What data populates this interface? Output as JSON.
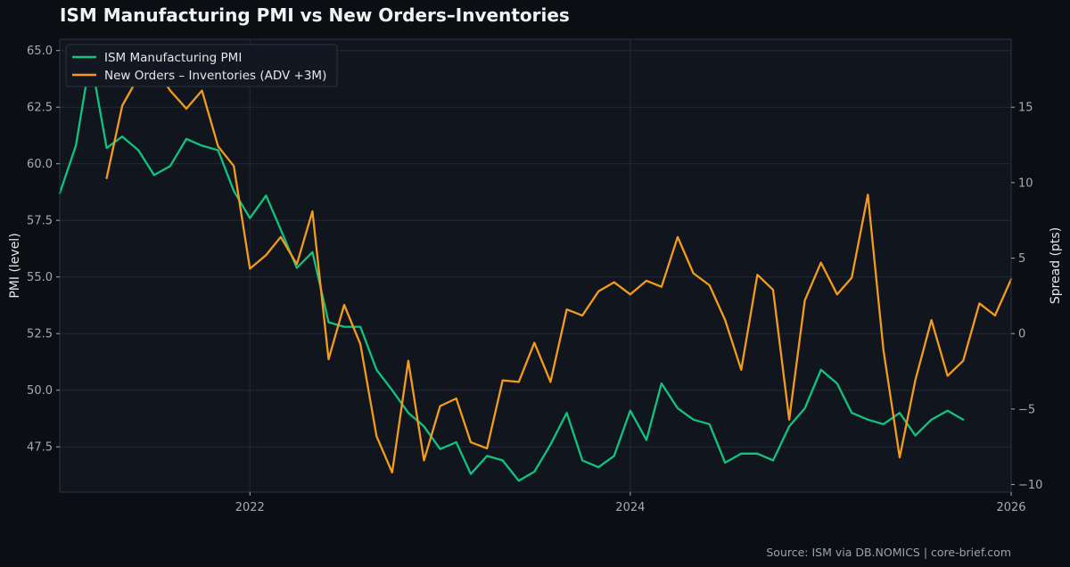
{
  "chart_data": {
    "type": "line",
    "title": "ISM Manufacturing PMI vs New Orders–Inventories",
    "source": "Source: ISM via DB.NOMICS | core-brief.com",
    "ylabel_left": "PMI (level)",
    "ylabel_right": "Spread (pts)",
    "xlim": [
      "2021-01-01",
      "2026-01-01"
    ],
    "ylim_left": [
      45.5,
      65.5
    ],
    "ylim_right": [
      -10.5,
      19.5
    ],
    "x_ticks": [
      {
        "date": "2022-01-01",
        "label": "2022"
      },
      {
        "date": "2024-01-01",
        "label": "2024"
      },
      {
        "date": "2026-01-01",
        "label": "2026"
      }
    ],
    "y_left_ticks": [
      {
        "v": 47.5,
        "label": "47.5"
      },
      {
        "v": 50.0,
        "label": "50.0"
      },
      {
        "v": 52.5,
        "label": "52.5"
      },
      {
        "v": 55.0,
        "label": "55.0"
      },
      {
        "v": 57.5,
        "label": "57.5"
      },
      {
        "v": 60.0,
        "label": "60.0"
      },
      {
        "v": 62.5,
        "label": "62.5"
      },
      {
        "v": 65.0,
        "label": "65.0"
      }
    ],
    "y_right_ticks": [
      {
        "v": -10,
        "label": "−10"
      },
      {
        "v": -5,
        "label": "−5"
      },
      {
        "v": 0,
        "label": "0"
      },
      {
        "v": 5,
        "label": "5"
      },
      {
        "v": 10,
        "label": "10"
      },
      {
        "v": 15,
        "label": "15"
      }
    ],
    "grid": true,
    "legend_position": "top-left",
    "series": [
      {
        "name": "ISM Manufacturing PMI",
        "axis": "left",
        "color": "#10c47e",
        "points": [
          [
            "2021-01-01",
            58.7
          ],
          [
            "2021-02-01",
            60.8
          ],
          [
            "2021-03-01",
            64.7
          ],
          [
            "2021-04-01",
            60.7
          ],
          [
            "2021-05-01",
            61.2
          ],
          [
            "2021-06-01",
            60.6
          ],
          [
            "2021-07-01",
            59.5
          ],
          [
            "2021-08-01",
            59.9
          ],
          [
            "2021-09-01",
            61.1
          ],
          [
            "2021-10-01",
            60.8
          ],
          [
            "2021-11-01",
            60.6
          ],
          [
            "2021-12-01",
            58.8
          ],
          [
            "2022-01-01",
            57.6
          ],
          [
            "2022-02-01",
            58.6
          ],
          [
            "2022-03-01",
            57.1
          ],
          [
            "2022-04-01",
            55.4
          ],
          [
            "2022-05-01",
            56.1
          ],
          [
            "2022-06-01",
            53.0
          ],
          [
            "2022-07-01",
            52.8
          ],
          [
            "2022-08-01",
            52.8
          ],
          [
            "2022-09-01",
            50.9
          ],
          [
            "2022-10-01",
            50.0
          ],
          [
            "2022-11-01",
            49.0
          ],
          [
            "2022-12-01",
            48.4
          ],
          [
            "2023-01-01",
            47.4
          ],
          [
            "2023-02-01",
            47.7
          ],
          [
            "2023-03-01",
            46.3
          ],
          [
            "2023-04-01",
            47.1
          ],
          [
            "2023-05-01",
            46.9
          ],
          [
            "2023-06-01",
            46.0
          ],
          [
            "2023-07-01",
            46.4
          ],
          [
            "2023-08-01",
            47.6
          ],
          [
            "2023-09-01",
            49.0
          ],
          [
            "2023-10-01",
            46.9
          ],
          [
            "2023-11-01",
            46.6
          ],
          [
            "2023-12-01",
            47.1
          ],
          [
            "2024-01-01",
            49.1
          ],
          [
            "2024-02-01",
            47.8
          ],
          [
            "2024-03-01",
            50.3
          ],
          [
            "2024-04-01",
            49.2
          ],
          [
            "2024-05-01",
            48.7
          ],
          [
            "2024-06-01",
            48.5
          ],
          [
            "2024-07-01",
            46.8
          ],
          [
            "2024-08-01",
            47.2
          ],
          [
            "2024-09-01",
            47.2
          ],
          [
            "2024-10-01",
            46.9
          ],
          [
            "2024-11-01",
            48.4
          ],
          [
            "2024-12-01",
            49.2
          ],
          [
            "2025-01-01",
            50.9
          ],
          [
            "2025-02-01",
            50.3
          ],
          [
            "2025-03-01",
            49.0
          ],
          [
            "2025-04-01",
            48.7
          ],
          [
            "2025-05-01",
            48.5
          ],
          [
            "2025-06-01",
            49.0
          ],
          [
            "2025-07-01",
            48.0
          ],
          [
            "2025-08-01",
            48.7
          ],
          [
            "2025-09-01",
            49.1
          ],
          [
            "2025-10-01",
            48.7
          ]
        ]
      },
      {
        "name": "New Orders – Inventories (ADV +3M)",
        "axis": "right",
        "color": "#f39c1b",
        "points": [
          [
            "2021-04-01",
            10.3
          ],
          [
            "2021-05-01",
            15.1
          ],
          [
            "2021-06-01",
            17.0
          ],
          [
            "2021-07-01",
            17.7
          ],
          [
            "2021-08-01",
            16.1
          ],
          [
            "2021-09-01",
            14.9
          ],
          [
            "2021-10-01",
            16.1
          ],
          [
            "2021-11-01",
            12.4
          ],
          [
            "2021-12-01",
            11.1
          ],
          [
            "2022-01-01",
            4.3
          ],
          [
            "2022-02-01",
            5.2
          ],
          [
            "2022-03-01",
            6.4
          ],
          [
            "2022-04-01",
            4.6
          ],
          [
            "2022-05-01",
            8.1
          ],
          [
            "2022-06-01",
            -1.7
          ],
          [
            "2022-07-01",
            1.9
          ],
          [
            "2022-08-01",
            -0.7
          ],
          [
            "2022-09-01",
            -6.8
          ],
          [
            "2022-10-01",
            -9.2
          ],
          [
            "2022-11-01",
            -1.8
          ],
          [
            "2022-12-01",
            -8.4
          ],
          [
            "2023-01-01",
            -4.8
          ],
          [
            "2023-02-01",
            -4.3
          ],
          [
            "2023-03-01",
            -7.2
          ],
          [
            "2023-04-01",
            -7.6
          ],
          [
            "2023-05-01",
            -3.1
          ],
          [
            "2023-06-01",
            -3.2
          ],
          [
            "2023-07-01",
            -0.6
          ],
          [
            "2023-08-01",
            -3.2
          ],
          [
            "2023-09-01",
            1.6
          ],
          [
            "2023-10-01",
            1.2
          ],
          [
            "2023-11-01",
            2.8
          ],
          [
            "2023-12-01",
            3.4
          ],
          [
            "2024-01-01",
            2.6
          ],
          [
            "2024-02-01",
            3.5
          ],
          [
            "2024-03-01",
            3.1
          ],
          [
            "2024-04-01",
            6.4
          ],
          [
            "2024-05-01",
            4.0
          ],
          [
            "2024-06-01",
            3.2
          ],
          [
            "2024-07-01",
            0.9
          ],
          [
            "2024-08-01",
            -2.4
          ],
          [
            "2024-09-01",
            3.9
          ],
          [
            "2024-10-01",
            2.9
          ],
          [
            "2024-11-01",
            -5.7
          ],
          [
            "2024-12-01",
            2.2
          ],
          [
            "2025-01-01",
            4.7
          ],
          [
            "2025-02-01",
            2.6
          ],
          [
            "2025-03-01",
            3.7
          ],
          [
            "2025-04-01",
            9.2
          ],
          [
            "2025-05-01",
            -1.1
          ],
          [
            "2025-06-01",
            -8.2
          ],
          [
            "2025-07-01",
            -3.1
          ],
          [
            "2025-08-01",
            0.9
          ],
          [
            "2025-09-01",
            -2.8
          ],
          [
            "2025-10-01",
            -1.8
          ],
          [
            "2025-11-01",
            2.0
          ],
          [
            "2025-12-01",
            1.2
          ],
          [
            "2026-01-01",
            3.6
          ]
        ]
      }
    ]
  }
}
